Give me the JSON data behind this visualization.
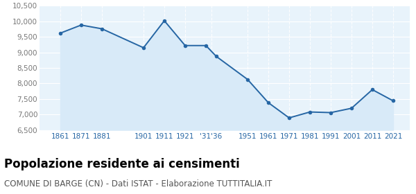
{
  "years": [
    1861,
    1871,
    1881,
    1901,
    1911,
    1921,
    1931,
    1936,
    1951,
    1961,
    1971,
    1981,
    1991,
    2001,
    2011,
    2021
  ],
  "population": [
    9620,
    9880,
    9760,
    9150,
    10020,
    9220,
    9220,
    8870,
    8130,
    7380,
    6890,
    7080,
    7060,
    7200,
    7800,
    7440
  ],
  "xtick_positions": [
    1861,
    1871,
    1881,
    1901,
    1911,
    1921,
    1933.5,
    1951,
    1961,
    1971,
    1981,
    1991,
    2001,
    2011,
    2021
  ],
  "xtick_labels": [
    "1861",
    "1871",
    "1881",
    "1901",
    "1911",
    "1921",
    "'31'36",
    "1951",
    "1961",
    "1971",
    "1981",
    "1991",
    "2001",
    "2011",
    "2021"
  ],
  "ylim": [
    6500,
    10500
  ],
  "yticks": [
    6500,
    7000,
    7500,
    8000,
    8500,
    9000,
    9500,
    10000,
    10500
  ],
  "ytick_labels": [
    "6,500",
    "7,000",
    "7,500",
    "8,000",
    "8,500",
    "9,000",
    "9,500",
    "10,000",
    "10,500"
  ],
  "xlim_left": 1851,
  "xlim_right": 2029,
  "line_color": "#2666A4",
  "fill_color": "#D8EAF8",
  "marker_color": "#2666A4",
  "background_color": "#E8F3FB",
  "grid_color": "#FFFFFF",
  "title": "Popolazione residente ai censimenti",
  "subtitle": "COMUNE DI BARGE (CN) - Dati ISTAT - Elaborazione TUTTITALIA.IT",
  "title_fontsize": 12,
  "subtitle_fontsize": 8.5,
  "tick_fontsize": 7.5,
  "ytick_fontsize": 7.5,
  "tick_color": "#2666A4",
  "ytick_color": "#777777"
}
